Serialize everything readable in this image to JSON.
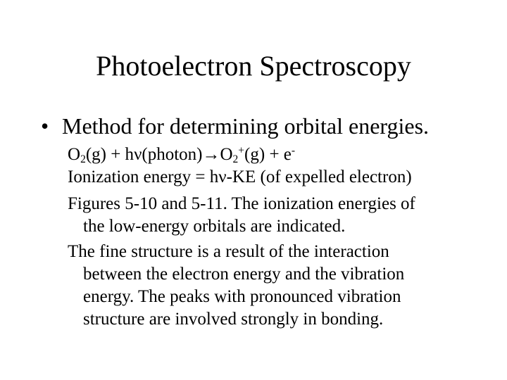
{
  "title": "Photoelectron Spectroscopy",
  "bullet": {
    "marker": "•",
    "text": "Method for determining orbital energies."
  },
  "equation": {
    "reactant": "O",
    "reactant_sub": "2",
    "reactant_state": "(g) + h",
    "nu": "ν",
    "photon": "(photon)",
    "arrow": "→",
    "product": "O",
    "product_sub": "2",
    "product_sup": "+",
    "product_state": "(g) + e",
    "electron_sup": "-"
  },
  "ionization": {
    "prefix": "Ionization energy = h",
    "nu": "ν",
    "suffix": "-KE (of expelled electron)"
  },
  "figures": {
    "line1": "Figures 5-10 and 5-11.  The ionization energies of",
    "line2": "the low-energy orbitals are indicated."
  },
  "fine_structure": {
    "line1": "The fine structure is a result of the interaction",
    "line2": "between the electron energy and the vibration",
    "line3": "energy.  The peaks with pronounced vibration",
    "line4": "structure are involved strongly in bonding."
  }
}
